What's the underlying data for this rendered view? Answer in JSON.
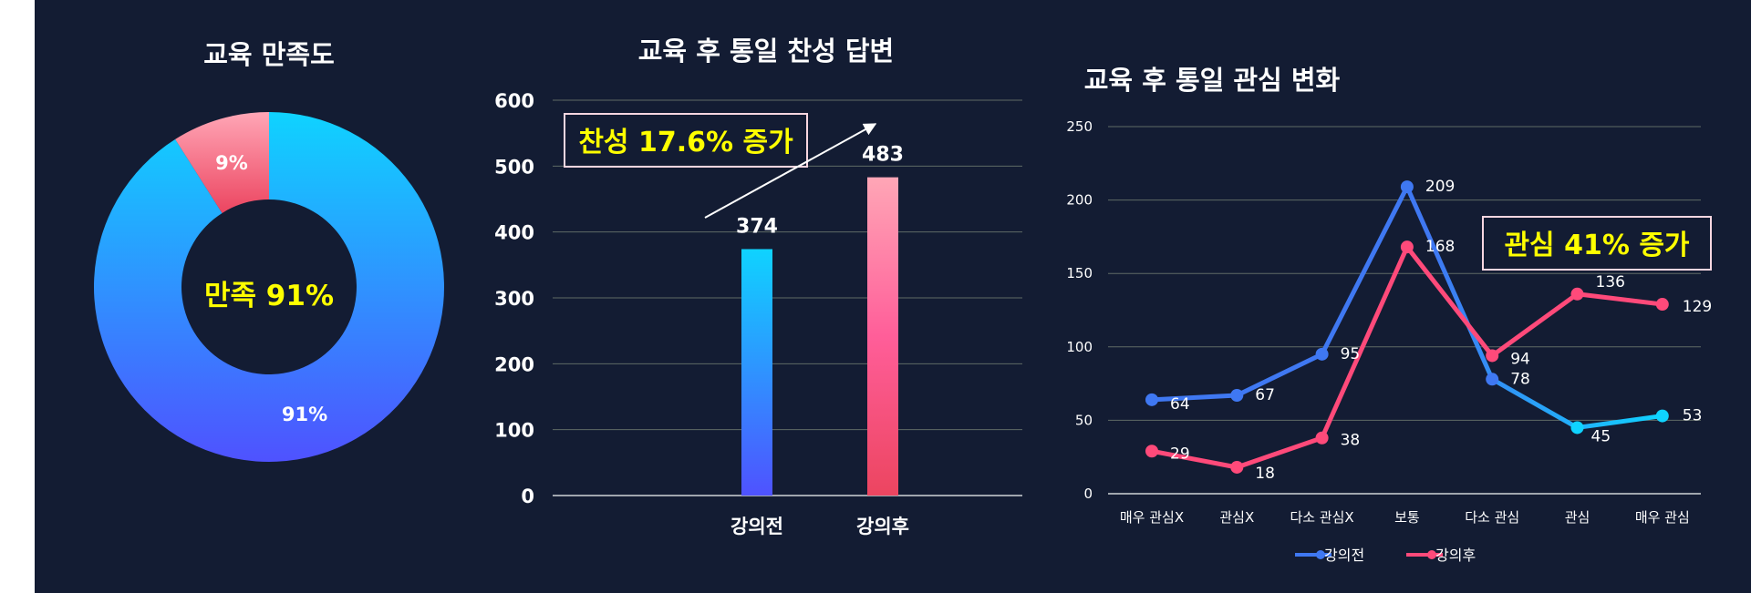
{
  "colors": {
    "background": "#131c33",
    "grid": "#5f6a66",
    "axis_text": "#ffffff",
    "callout": "#ffff00",
    "callout_border": "#f8d6e0",
    "before_start": "#0fd3ff",
    "before_end": "#4f52ff",
    "after_start": "#ffa6b6",
    "after_mid": "#ff5e99",
    "after_end": "#ec4560",
    "line_before": "#3f78f2",
    "line_after": "#ff4a7a"
  },
  "chart_data": [
    {
      "type": "pie",
      "title": "교육 만족도",
      "center_label": "만족 91%",
      "slices": [
        {
          "label": "91%",
          "value": 91
        },
        {
          "label": "9%",
          "value": 9
        }
      ]
    },
    {
      "type": "bar",
      "title": "교육 후 통일 찬성 답변",
      "categories": [
        "강의전",
        "강의후"
      ],
      "values": [
        374,
        483
      ],
      "ylim": [
        0,
        600
      ],
      "yticks": [
        "0",
        "100",
        "200",
        "300",
        "400",
        "500",
        "600"
      ],
      "annotation": "찬성 17.6% 증가",
      "grid": true
    },
    {
      "type": "line",
      "title": "교육 후 통일 관심 변화",
      "categories": [
        "매우 관심X",
        "관심X",
        "다소 관심X",
        "보통",
        "다소 관심",
        "관심",
        "매우 관심"
      ],
      "series": [
        {
          "name": "강의전",
          "values": [
            64,
            67,
            95,
            209,
            78,
            45,
            53
          ]
        },
        {
          "name": "강의후",
          "values": [
            29,
            18,
            38,
            168,
            94,
            136,
            129
          ]
        }
      ],
      "ylim": [
        0,
        250
      ],
      "yticks": [
        "0",
        "50",
        "100",
        "150",
        "200",
        "250"
      ],
      "annotation": "관심 41% 증가",
      "legend": "bottom",
      "grid": true
    }
  ]
}
